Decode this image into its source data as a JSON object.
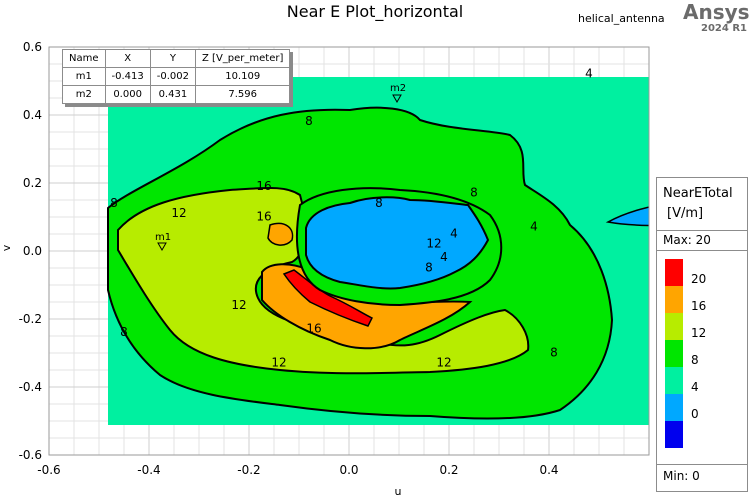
{
  "header": {
    "title": "Near E Plot_horizontal",
    "design_name": "helical_antenna",
    "brand": "Ansys",
    "version": "2024 R1"
  },
  "marker_table": {
    "columns": [
      "Name",
      "X",
      "Y",
      "Z [V_per_meter]"
    ],
    "rows": [
      {
        "name": "m1",
        "x": "-0.413",
        "y": "-0.002",
        "z": "10.109"
      },
      {
        "name": "m2",
        "x": "0.000",
        "y": "0.431",
        "z": "7.596"
      }
    ]
  },
  "legend": {
    "title_line1": "NearETotal",
    "title_line2": "[V/m]",
    "max_label": "Max:  20",
    "min_label": "Min:   0",
    "bands": [
      {
        "label": "20",
        "color": "#ff0000"
      },
      {
        "label": "16",
        "color": "#ffa500"
      },
      {
        "label": "12",
        "color": "#b7ec00"
      },
      {
        "label": "8",
        "color": "#00e600"
      },
      {
        "label": "4",
        "color": "#00f0a0"
      },
      {
        "label": "0",
        "color": "#00a8ff"
      },
      {
        "label": "",
        "color": "#0000ee"
      }
    ]
  },
  "chart_data": {
    "type": "heatmap",
    "subtype": "filled contour",
    "title": "Near E Plot_horizontal",
    "xlabel": "u",
    "ylabel": "v",
    "xlim": [
      -0.6,
      0.6
    ],
    "ylim": [
      -0.6,
      0.6
    ],
    "x_ticks": [
      -0.6,
      -0.4,
      -0.2,
      0.0,
      0.2,
      0.4
    ],
    "y_ticks": [
      0.6,
      0.4,
      0.2,
      0.0,
      -0.2,
      -0.4,
      -0.6
    ],
    "grid": true,
    "data_extent": {
      "u": [
        -0.51,
        0.51
      ],
      "v": [
        -0.51,
        0.51
      ]
    },
    "colorbar": {
      "quantity": "NearETotal",
      "unit": "V/m",
      "min": 0,
      "max": 20,
      "levels": [
        0,
        4,
        8,
        12,
        16,
        20
      ]
    },
    "contour_labels": [
      {
        "value": 4,
        "u": 0.48,
        "v": 0.51
      },
      {
        "value": 4,
        "u": 0.37,
        "v": 0.06
      },
      {
        "value": 4,
        "u": 0.21,
        "v": 0.04
      },
      {
        "value": 4,
        "u": 0.19,
        "v": -0.03
      },
      {
        "value": 8,
        "u": -0.47,
        "v": 0.13
      },
      {
        "value": 8,
        "u": -0.08,
        "v": 0.37
      },
      {
        "value": 8,
        "u": 0.06,
        "v": 0.13
      },
      {
        "value": 8,
        "u": 0.25,
        "v": 0.16
      },
      {
        "value": 8,
        "u": -0.45,
        "v": -0.25
      },
      {
        "value": 8,
        "u": 0.41,
        "v": -0.31
      },
      {
        "value": 8,
        "u": 0.16,
        "v": -0.06
      },
      {
        "value": 12,
        "u": -0.34,
        "v": 0.1
      },
      {
        "value": 12,
        "u": -0.22,
        "v": -0.17
      },
      {
        "value": 12,
        "u": -0.14,
        "v": -0.34
      },
      {
        "value": 12,
        "u": 0.19,
        "v": -0.34
      },
      {
        "value": 12,
        "u": 0.17,
        "v": 0.01
      },
      {
        "value": 16,
        "u": -0.17,
        "v": 0.09
      },
      {
        "value": 16,
        "u": -0.17,
        "v": 0.18
      },
      {
        "value": 16,
        "u": -0.07,
        "v": -0.24
      }
    ],
    "markers": [
      {
        "name": "m1",
        "u": -0.413,
        "v": -0.002,
        "value": 10.109
      },
      {
        "name": "m2",
        "u": 0.0,
        "v": 0.431,
        "value": 7.596
      }
    ],
    "regions": {
      "background_4_to_8": "u,v in [-0.51,0.51], plus blue (0-4) patches at top-right corner and right edge near v=0.06",
      "ring_8_to_12": "ring around center from about u -0.51..0.45, v -0.33..0.25",
      "ring_12_to_16": "lower-left/bottom band u -0.24..0.22, v -0.32..-0.02 plus left patches",
      "band_16_to_20": "arc u -0.24..-0.05, v -0.26..-0.10",
      "peak_20_plus": "thin red sliver u -0.2..-0.05, v -0.17..-0.22",
      "center_0_to_4": "blue hole u -0.17..0.19, v -0.07..0.12"
    }
  }
}
